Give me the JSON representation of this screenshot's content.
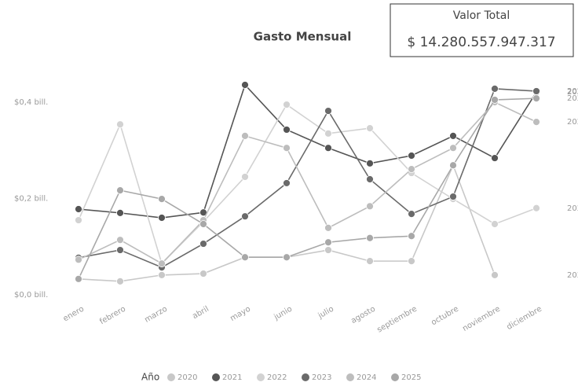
{
  "card": {
    "title": "Valor Total",
    "value": "$ 14.280.557.947.317"
  },
  "chart_data": {
    "type": "line",
    "title": "Gasto Mensual",
    "legend_title": "Año",
    "categories": [
      "enero",
      "febrero",
      "marzo",
      "abril",
      "mayo",
      "junio",
      "julio",
      "agosto",
      "septiembre",
      "octubre",
      "noviembre",
      "diciembre"
    ],
    "series": [
      {
        "name": "2020",
        "color": "#c8c8c8",
        "values": [
          0.033,
          0.028,
          0.041,
          0.044,
          0.078,
          0.078,
          0.093,
          0.07,
          0.07,
          0.269,
          0.041,
          null
        ]
      },
      {
        "name": "2021",
        "color": "#555555",
        "values": [
          0.178,
          0.17,
          0.16,
          0.171,
          0.436,
          0.343,
          0.305,
          0.273,
          0.289,
          0.33,
          0.284,
          0.421
        ]
      },
      {
        "name": "2022",
        "color": "#d2d2d2",
        "values": [
          0.155,
          0.354,
          0.065,
          0.152,
          0.245,
          0.395,
          0.335,
          0.346,
          0.253,
          0.199,
          0.147,
          0.18
        ]
      },
      {
        "name": "2023",
        "color": "#6a6a6a",
        "values": [
          0.077,
          0.093,
          0.057,
          0.106,
          0.163,
          0.232,
          0.382,
          0.24,
          0.168,
          0.204,
          0.428,
          0.423
        ]
      },
      {
        "name": "2024",
        "color": "#bdbdbd",
        "values": [
          0.073,
          0.114,
          0.065,
          0.155,
          0.33,
          0.305,
          0.139,
          0.184,
          0.261,
          0.305,
          0.4,
          0.359
        ]
      },
      {
        "name": "2025",
        "color": "#a8a8a8",
        "values": [
          0.033,
          0.217,
          0.199,
          0.147,
          0.078,
          0.078,
          0.109,
          0.118,
          0.122,
          0.269,
          0.405,
          0.408
        ]
      }
    ],
    "ylim": [
      0,
      0.45
    ],
    "yticks": [
      {
        "value": 0,
        "label": "$0,0 bill."
      },
      {
        "value": 0.2,
        "label": "$0,2 bill."
      },
      {
        "value": 0.4,
        "label": "$0,4 bill."
      }
    ],
    "grid": false
  }
}
